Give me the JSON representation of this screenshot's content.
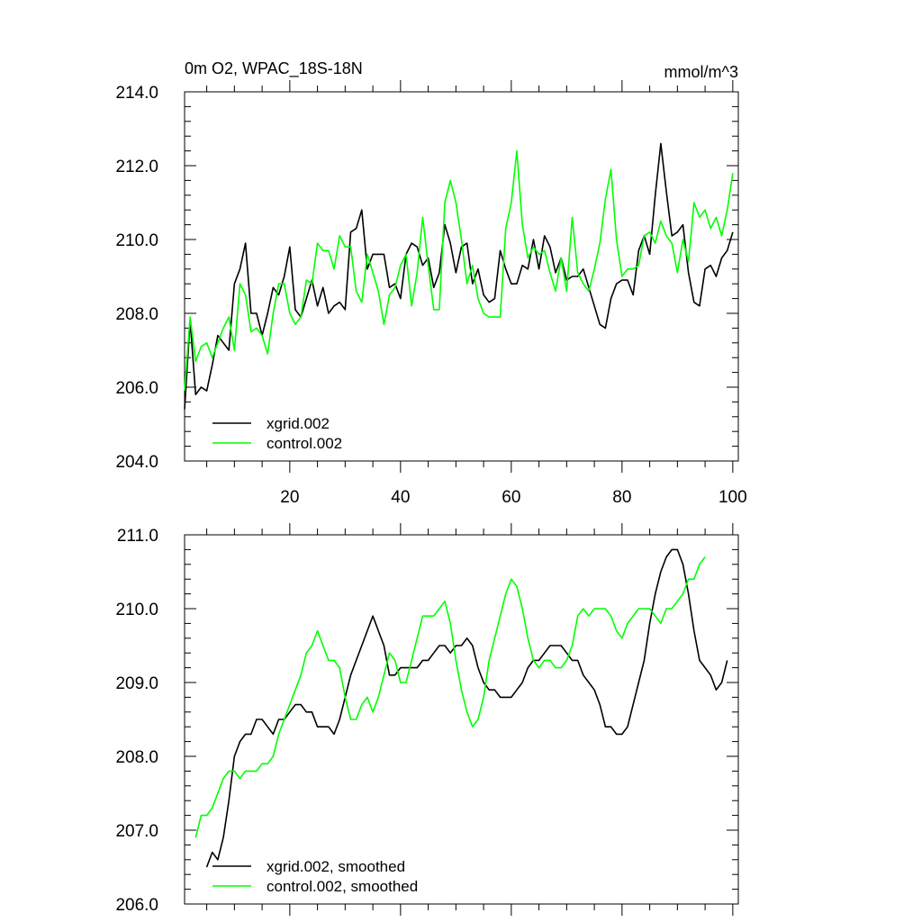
{
  "chart_data": [
    {
      "type": "line",
      "title": "0m O2, WPAC_18S-18N",
      "units": "mmol/m^3",
      "xlim": [
        1,
        101
      ],
      "ylim": [
        204,
        214
      ],
      "xticks": [
        20,
        40,
        60,
        80,
        100
      ],
      "xtick_labels": [
        "20",
        "40",
        "60",
        "80",
        "100"
      ],
      "yticks": [
        204,
        206,
        208,
        210,
        212,
        214
      ],
      "ytick_labels": [
        "204.0",
        "206.0",
        "208.0",
        "210.0",
        "212.0",
        "214.0"
      ],
      "legend_position": "bottom-left",
      "series": [
        {
          "name": "xgrid.002",
          "color": "#000000",
          "x_start": 1,
          "values": [
            205.4,
            207.8,
            205.8,
            206.0,
            205.9,
            206.6,
            207.4,
            207.2,
            207.0,
            208.8,
            209.2,
            209.9,
            208.0,
            208.0,
            207.4,
            208.0,
            208.7,
            208.5,
            209.0,
            209.8,
            208.1,
            207.9,
            208.4,
            208.9,
            208.2,
            208.7,
            208.0,
            208.2,
            208.3,
            208.1,
            210.2,
            210.3,
            210.8,
            209.2,
            209.6,
            209.6,
            209.6,
            208.7,
            208.8,
            208.4,
            209.6,
            209.9,
            209.8,
            209.3,
            209.5,
            208.7,
            209.1,
            210.4,
            209.9,
            209.1,
            209.8,
            209.9,
            208.8,
            209.2,
            208.5,
            208.3,
            208.4,
            209.7,
            209.2,
            208.8,
            208.8,
            209.3,
            209.2,
            210.0,
            209.2,
            210.1,
            209.8,
            209.1,
            209.5,
            208.9,
            209.0,
            209.0,
            209.2,
            208.7,
            208.2,
            207.7,
            207.6,
            208.4,
            208.8,
            208.9,
            208.9,
            208.5,
            209.7,
            210.1,
            209.6,
            211.2,
            212.6,
            211.3,
            210.1,
            210.2,
            210.4,
            209.1,
            208.3,
            208.2,
            209.2,
            209.3,
            209.0,
            209.5,
            209.7,
            210.2
          ]
        },
        {
          "name": "control.002",
          "color": "#00ff00",
          "x_start": 1,
          "values": [
            205.9,
            207.9,
            206.7,
            207.1,
            207.2,
            206.8,
            207.2,
            207.6,
            207.9,
            207.0,
            208.8,
            208.5,
            207.5,
            207.6,
            207.4,
            206.9,
            208.0,
            208.8,
            208.8,
            208.0,
            207.7,
            207.9,
            208.9,
            208.8,
            209.9,
            209.7,
            209.7,
            209.2,
            210.1,
            209.8,
            209.8,
            208.6,
            208.3,
            209.6,
            209.1,
            208.6,
            207.7,
            208.5,
            208.7,
            209.3,
            209.6,
            208.2,
            209.1,
            210.6,
            209.3,
            208.1,
            208.1,
            211.0,
            211.6,
            211.0,
            210.0,
            208.8,
            209.3,
            208.4,
            208.0,
            207.9,
            207.9,
            207.9,
            210.3,
            211.0,
            212.4,
            210.4,
            209.5,
            209.8,
            209.6,
            209.7,
            209.1,
            208.6,
            209.5,
            208.6,
            210.6,
            209.1,
            208.8,
            208.6,
            209.2,
            209.9,
            211.1,
            211.9,
            210.0,
            209.0,
            209.2,
            209.2,
            209.3,
            210.1,
            210.2,
            209.9,
            210.5,
            210.1,
            209.9,
            209.1,
            210.0,
            209.4,
            211.0,
            210.6,
            210.8,
            210.3,
            210.6,
            210.1,
            210.8,
            211.8
          ]
        }
      ]
    },
    {
      "type": "line",
      "title": "",
      "xlim": [
        1,
        101
      ],
      "ylim": [
        206,
        211
      ],
      "yticks": [
        206,
        207,
        208,
        209,
        210,
        211
      ],
      "ytick_labels": [
        "206.0",
        "207.0",
        "208.0",
        "209.0",
        "210.0",
        "211.0"
      ],
      "legend_position": "bottom-left",
      "series": [
        {
          "name": "xgrid.002, smoothed",
          "color": "#000000",
          "x_start": 5,
          "values": [
            206.5,
            206.7,
            206.6,
            206.9,
            207.4,
            208.0,
            208.2,
            208.3,
            208.3,
            208.5,
            208.5,
            208.4,
            208.3,
            208.5,
            208.5,
            208.6,
            208.7,
            208.7,
            208.6,
            208.6,
            208.4,
            208.4,
            208.4,
            208.3,
            208.5,
            208.8,
            209.1,
            209.3,
            209.5,
            209.7,
            209.9,
            209.7,
            209.5,
            209.1,
            209.1,
            209.2,
            209.2,
            209.2,
            209.2,
            209.3,
            209.3,
            209.4,
            209.5,
            209.5,
            209.4,
            209.5,
            209.5,
            209.6,
            209.5,
            209.2,
            209.0,
            208.9,
            208.9,
            208.8,
            208.8,
            208.8,
            208.9,
            209.0,
            209.2,
            209.3,
            209.3,
            209.4,
            209.5,
            209.5,
            209.5,
            209.4,
            209.3,
            209.3,
            209.1,
            209.0,
            208.9,
            208.7,
            208.4,
            208.4,
            208.3,
            208.3,
            208.4,
            208.7,
            209.0,
            209.3,
            209.8,
            210.2,
            210.5,
            210.7,
            210.8,
            210.8,
            210.6,
            210.2,
            209.7,
            209.3,
            209.2,
            209.1,
            208.9,
            209.0,
            209.3
          ]
        },
        {
          "name": "control.002, smoothed",
          "color": "#00ff00",
          "x_start": 3,
          "values": [
            206.9,
            207.2,
            207.2,
            207.3,
            207.5,
            207.7,
            207.8,
            207.8,
            207.7,
            207.8,
            207.8,
            207.8,
            207.9,
            207.9,
            208.0,
            208.3,
            208.5,
            208.7,
            208.9,
            209.1,
            209.4,
            209.5,
            209.7,
            209.5,
            209.3,
            209.3,
            209.2,
            208.8,
            208.5,
            208.5,
            208.7,
            208.8,
            208.6,
            208.8,
            209.1,
            209.4,
            209.3,
            209.0,
            209.0,
            209.3,
            209.6,
            209.9,
            209.9,
            209.9,
            210.0,
            210.1,
            209.8,
            209.3,
            208.9,
            208.6,
            208.4,
            208.5,
            208.8,
            209.3,
            209.6,
            209.9,
            210.2,
            210.4,
            210.3,
            210.0,
            209.6,
            209.3,
            209.2,
            209.3,
            209.3,
            209.2,
            209.2,
            209.3,
            209.5,
            209.9,
            210.0,
            209.9,
            210.0,
            210.0,
            210.0,
            209.9,
            209.7,
            209.6,
            209.8,
            209.9,
            210.0,
            210.0,
            210.0,
            209.9,
            209.8,
            210.0,
            210.0,
            210.1,
            210.2,
            210.4,
            210.4,
            210.6,
            210.7
          ]
        }
      ]
    }
  ]
}
